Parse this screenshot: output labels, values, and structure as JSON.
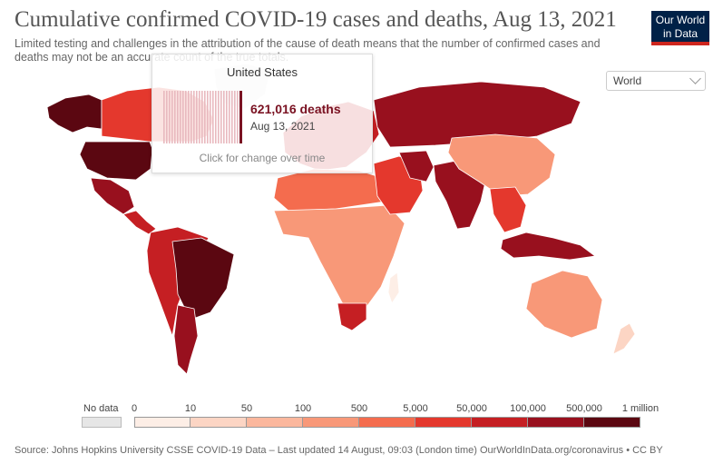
{
  "header": {
    "title": "Cumulative confirmed COVID-19 cases and deaths, Aug 13, 2021",
    "subtitle": "Limited testing and challenges in the attribution of the cause of death means that the number of confirmed cases and deaths may not be an accurate count of the true totals."
  },
  "logo": {
    "line1": "Our World",
    "line2": "in Data"
  },
  "region_select": {
    "value": "World"
  },
  "tooltip": {
    "country": "United States",
    "value": "621,016 deaths",
    "date": "Aug 13, 2021",
    "hint": "Click for change over time"
  },
  "legend": {
    "no_data_label": "No data",
    "no_data_color": "#e6e6e6",
    "breaks": [
      "0",
      "10",
      "50",
      "100",
      "500",
      "5,000",
      "50,000",
      "100,000",
      "500,000",
      "1 million"
    ],
    "colors": [
      "#fdeee6",
      "#fcd5c4",
      "#fbb79d",
      "#f89878",
      "#f46c4e",
      "#e4382d",
      "#c51f23",
      "#98101e",
      "#5b0711"
    ]
  },
  "map_colors": {
    "ocean": "#ffffff",
    "border": "#ffffff",
    "canada": "#e4382d",
    "usa": "#5b0711",
    "alaska": "#5b0711",
    "greenland": "#e6e6e6",
    "mexico": "#98101e",
    "central_america": "#c51f23",
    "brazil": "#5b0711",
    "south_america": "#c51f23",
    "argentina": "#98101e",
    "europe": "#c51f23",
    "russia": "#98101e",
    "north_africa": "#f46c4e",
    "africa": "#f89878",
    "south_africa": "#c51f23",
    "middle_east": "#e4382d",
    "iran": "#98101e",
    "india": "#98101e",
    "china": "#f89878",
    "southeast_asia": "#e4382d",
    "indonesia": "#98101e",
    "australia": "#f89878",
    "new_zealand": "#fcd5c4",
    "madagascar": "#fdeee6"
  },
  "footer": {
    "source": "Source: Johns Hopkins University CSSE COVID-19 Data – Last updated 14 August, 09:03 (London time)   OurWorldInData.org/coronavirus • CC BY"
  }
}
